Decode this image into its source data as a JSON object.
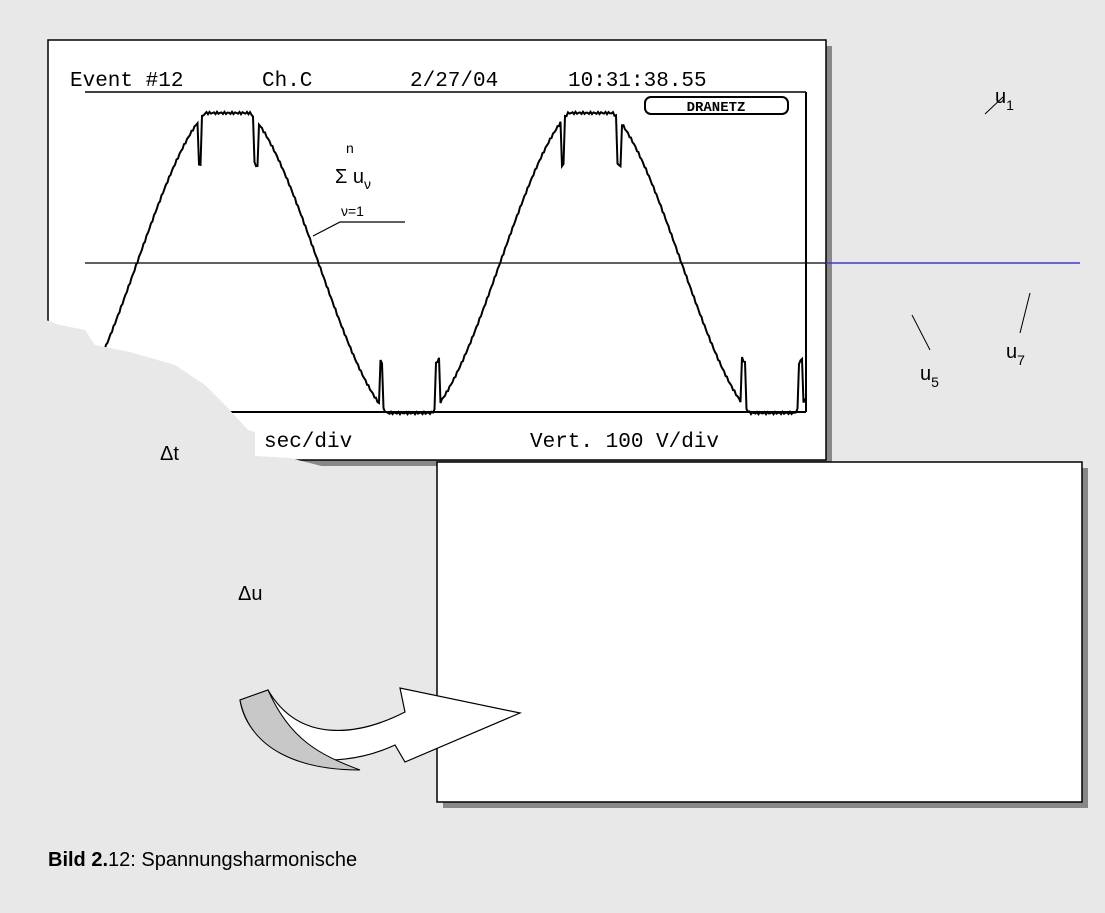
{
  "scope": {
    "event": "Event #12",
    "channel": "Ch.C",
    "date": "2/27/04",
    "time": "10:31:38.55",
    "brand": "DRANETZ",
    "timebase": "sec/div",
    "vertical": "Vert. 100 V/div"
  },
  "labels": {
    "sum_top": "n",
    "sum": "Σ u",
    "sum_sub": "ν",
    "sum_bottom": "ν=1",
    "u1": "u",
    "u1_sub": "1",
    "u5": "u",
    "u5_sub": "5",
    "u7": "u",
    "u7_sub": "7",
    "delta_t": "Δt",
    "delta_u": "Δu"
  },
  "caption": {
    "bold": "Bild 2.",
    "text": "12: Spannungsharmonische"
  }
}
